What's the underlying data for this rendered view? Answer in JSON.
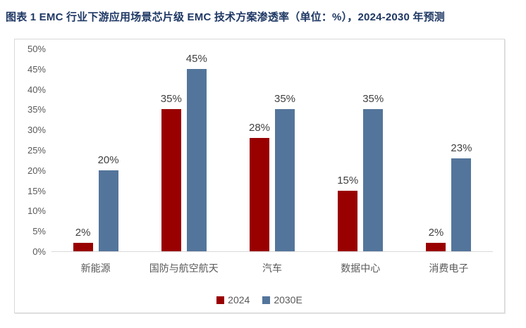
{
  "title": "图表 1 EMC 行业下游应用场景芯片级 EMC 技术方案渗透率（单位：%），2024-2030 年预测",
  "colors": {
    "title_text": "#1F3864",
    "axis_text": "#595959",
    "value_label_text": "#404040",
    "box_border": "#D9D9D9",
    "axis_line": "#D9D9D9",
    "series_2024": "#990000",
    "series_2030e": "#54759B"
  },
  "chart_data": {
    "type": "bar",
    "title": "图表 1 EMC 行业下游应用场景芯片级 EMC 技术方案渗透率（单位：%），2024-2030 年预测",
    "categories": [
      "新能源",
      "国防与航空航天",
      "汽车",
      "数据中心",
      "消费电子"
    ],
    "series": [
      {
        "name": "2024",
        "color": "#990000",
        "values": [
          2,
          35,
          28,
          15,
          2
        ],
        "labels": [
          "2%",
          "35%",
          "28%",
          "15%",
          "2%"
        ]
      },
      {
        "name": "2030E",
        "color": "#54759B",
        "values": [
          20,
          45,
          35,
          35,
          23
        ],
        "labels": [
          "20%",
          "45%",
          "35%",
          "35%",
          "23%"
        ]
      }
    ],
    "xlabel": "",
    "ylabel": "",
    "ylim": [
      0,
      50
    ],
    "y_ticks": {
      "values": [
        50,
        45,
        40,
        35,
        30,
        25,
        20,
        15,
        10,
        5,
        0
      ],
      "labels": [
        "50%",
        "45%",
        "40%",
        "35%",
        "30%",
        "25%",
        "20%",
        "15%",
        "10%",
        "5%",
        "0%"
      ]
    },
    "grid": false,
    "legend_position": "bottom"
  }
}
